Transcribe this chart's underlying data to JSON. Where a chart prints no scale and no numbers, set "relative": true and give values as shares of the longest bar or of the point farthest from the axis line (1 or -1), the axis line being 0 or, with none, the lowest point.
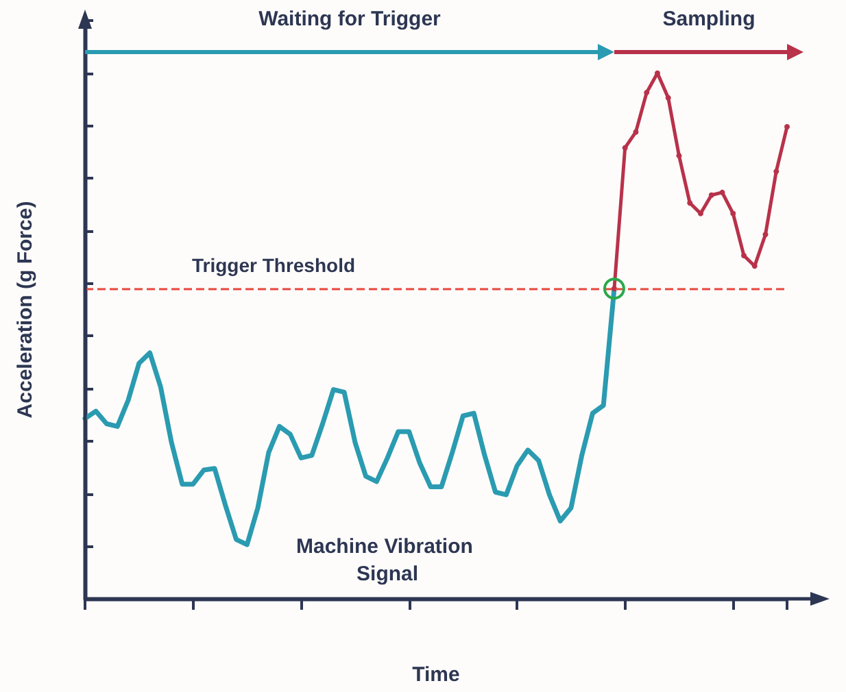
{
  "chart_data": {
    "type": "line",
    "relative": true,
    "xlabel": "Time",
    "ylabel": "Acceleration (g Force)",
    "annotations": [
      "Waiting for Trigger",
      "Sampling"
    ],
    "categories": [
      null,
      null,
      null,
      null,
      null,
      null,
      null,
      null,
      null,
      null,
      null,
      null,
      null,
      null,
      null,
      null,
      null,
      null,
      null,
      null,
      null,
      null,
      null,
      null,
      null,
      null,
      null,
      null,
      null,
      null,
      null,
      null,
      null,
      null,
      null,
      null,
      null,
      null,
      null,
      null,
      null,
      null,
      null,
      null,
      null,
      null,
      null,
      null,
      null,
      null,
      null,
      null,
      null,
      null,
      null,
      null,
      null,
      null,
      null,
      null,
      null,
      null,
      null,
      null,
      null,
      null
    ],
    "series": [
      {
        "name": "Machine Vibration Signal",
        "color": "#2a9bb0",
        "marker": "none",
        "values": [
          0.343,
          0.357,
          0.333,
          0.328,
          0.378,
          0.448,
          0.468,
          0.403,
          0.298,
          0.218,
          0.218,
          0.245,
          0.248,
          0.178,
          0.113,
          0.103,
          0.173,
          0.278,
          0.328,
          0.313,
          0.268,
          0.273,
          0.333,
          0.398,
          0.393,
          0.298,
          0.233,
          0.223,
          0.268,
          0.318,
          0.318,
          0.258,
          0.213,
          0.213,
          0.278,
          0.348,
          0.353,
          0.273,
          0.203,
          0.198,
          0.253,
          0.283,
          0.263,
          0.198,
          0.148,
          0.173,
          0.273,
          0.353,
          0.368,
          0.59,
          null,
          null,
          null,
          null,
          null,
          null,
          null,
          null,
          null,
          null,
          null,
          null,
          null,
          null,
          null,
          null
        ]
      },
      {
        "color": "#b8324a",
        "marker": "circle",
        "values": [
          null,
          null,
          null,
          null,
          null,
          null,
          null,
          null,
          null,
          null,
          null,
          null,
          null,
          null,
          null,
          null,
          null,
          null,
          null,
          null,
          null,
          null,
          null,
          null,
          null,
          null,
          null,
          null,
          null,
          null,
          null,
          null,
          null,
          null,
          null,
          null,
          null,
          null,
          null,
          null,
          null,
          null,
          null,
          null,
          null,
          null,
          null,
          null,
          null,
          0.59,
          0.858,
          0.888,
          0.963,
          1,
          0.953,
          0.843,
          0.753,
          0.733,
          0.768,
          0.773,
          0.733,
          0.653,
          0.633,
          0.693,
          0.813,
          0.898
        ]
      }
    ],
    "ref_lines": [
      {
        "axis": "y",
        "value": 0.59,
        "label": "Trigger Threshold",
        "color": "#e8473c",
        "line_style": "dashed"
      }
    ],
    "grid": false,
    "legend": false
  }
}
